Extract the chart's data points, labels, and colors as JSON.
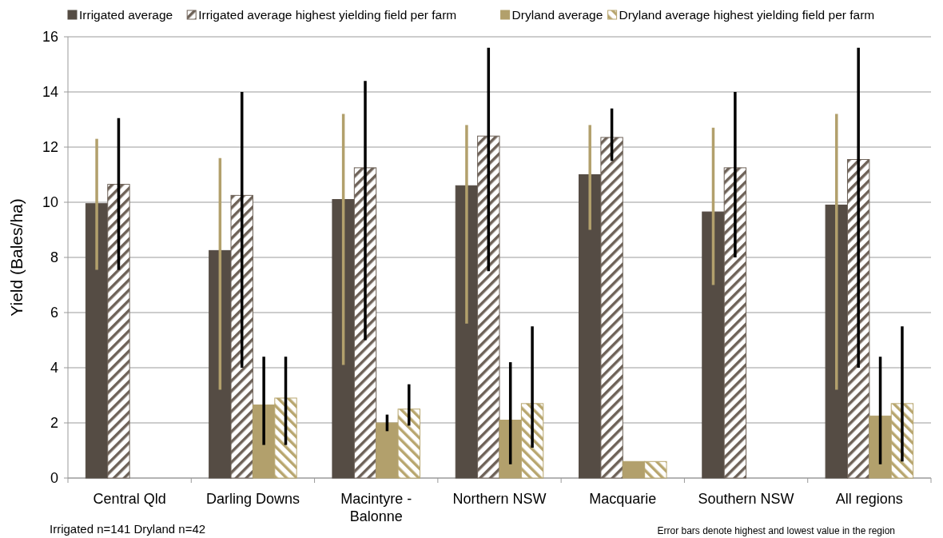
{
  "chart_data": {
    "type": "bar",
    "ylabel": "Yield (Bales/ha)",
    "categories": [
      "Central Qld",
      "Darling Downs",
      "Macintyre - Balonne",
      "Northern NSW",
      "Macquarie",
      "Southern NSW",
      "All regions"
    ],
    "series": [
      {
        "name": "Irrigated average",
        "color": "#554c44",
        "values": [
          9.95,
          8.25,
          10.1,
          10.6,
          11.0,
          9.65,
          9.9
        ],
        "errors": [
          [
            7.55,
            12.3
          ],
          [
            3.2,
            11.6
          ],
          [
            4.1,
            13.2
          ],
          [
            5.6,
            12.8
          ],
          [
            9.0,
            12.8
          ],
          [
            7.0,
            12.7
          ],
          [
            3.2,
            13.2
          ]
        ]
      },
      {
        "name": "Irrigated average highest yielding field per farm",
        "color": "#6e6258",
        "values": [
          10.65,
          10.25,
          11.25,
          12.4,
          12.35,
          11.25,
          11.55
        ],
        "errors": [
          [
            7.55,
            13.05
          ],
          [
            4.0,
            14.0
          ],
          [
            5.0,
            14.4
          ],
          [
            7.5,
            15.6
          ],
          [
            11.5,
            13.4
          ],
          [
            8.0,
            14.0
          ],
          [
            4.0,
            15.6
          ]
        ]
      },
      {
        "name": "Dryland average",
        "color": "#b2a06c",
        "values": [
          null,
          2.65,
          2.0,
          2.1,
          0.6,
          null,
          2.25
        ],
        "errors": [
          null,
          [
            1.2,
            4.4
          ],
          [
            1.7,
            2.3
          ],
          [
            0.5,
            4.2
          ],
          null,
          null,
          [
            0.5,
            4.4
          ]
        ]
      },
      {
        "name": "Dryland average highest yielding field per farm",
        "color": "#b8a66e",
        "values": [
          null,
          2.9,
          2.5,
          2.7,
          0.6,
          null,
          2.7
        ],
        "errors": [
          null,
          [
            1.2,
            4.4
          ],
          [
            1.9,
            3.4
          ],
          [
            1.1,
            5.5
          ],
          null,
          null,
          [
            0.6,
            5.5
          ]
        ]
      }
    ],
    "ylim": [
      0,
      16
    ],
    "yticks": [
      0,
      2,
      4,
      6,
      8,
      10,
      12,
      14,
      16
    ],
    "grid": "y",
    "legend": "top",
    "annotations": [
      "Irrigated n=141  Dryland n=42",
      "Error bars denote highest and lowest value in the region"
    ]
  }
}
